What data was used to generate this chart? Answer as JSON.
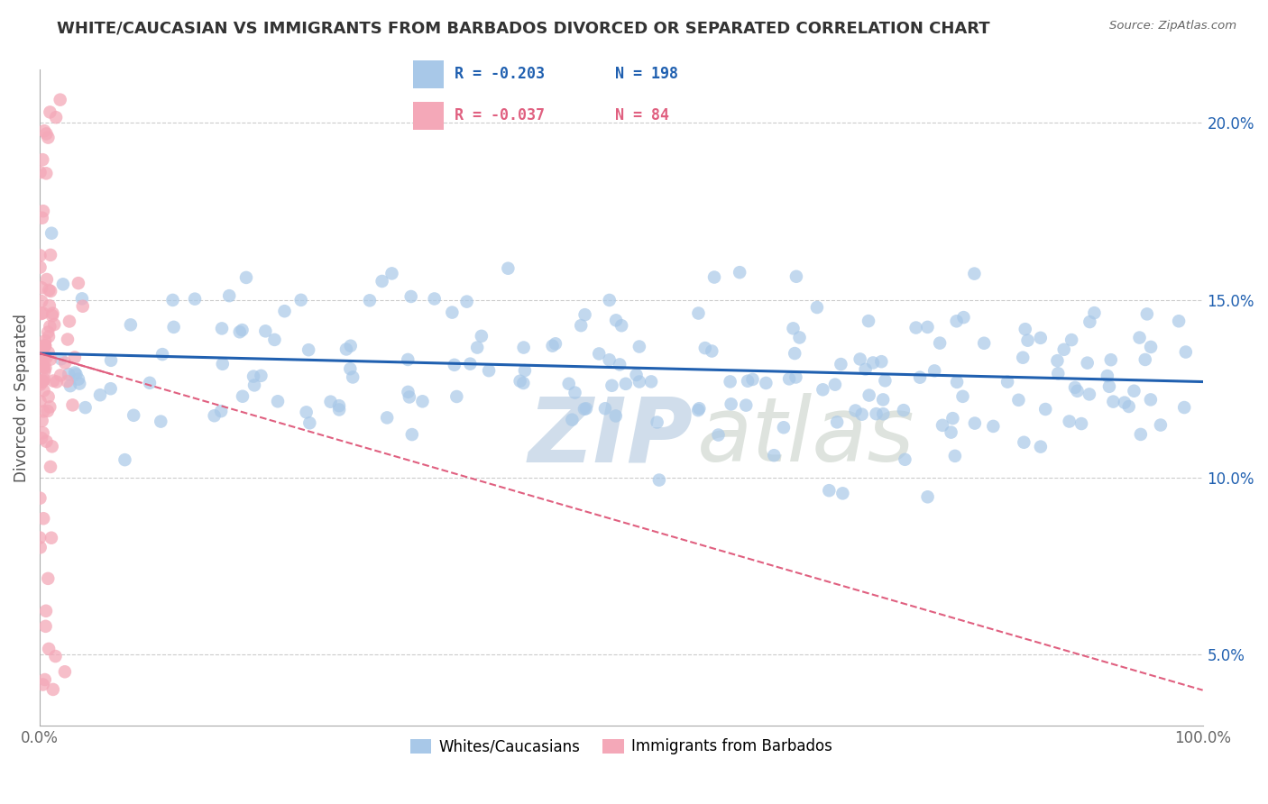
{
  "title": "WHITE/CAUCASIAN VS IMMIGRANTS FROM BARBADOS DIVORCED OR SEPARATED CORRELATION CHART",
  "source": "Source: ZipAtlas.com",
  "ylabel": "Divorced or Separated",
  "xlim": [
    0,
    1.0
  ],
  "ylim": [
    0.03,
    0.215
  ],
  "yticks": [
    0.05,
    0.1,
    0.15,
    0.2
  ],
  "ytick_labels": [
    "5.0%",
    "10.0%",
    "15.0%",
    "20.0%"
  ],
  "xticks": [
    0.0,
    1.0
  ],
  "xtick_labels": [
    "0.0%",
    "100.0%"
  ],
  "blue_R": -0.203,
  "blue_N": 198,
  "pink_R": -0.037,
  "pink_N": 84,
  "blue_color": "#a8c8e8",
  "pink_color": "#f4a8b8",
  "blue_line_color": "#2060b0",
  "pink_line_color": "#e06080",
  "legend_label_blue": "Whites/Caucasians",
  "legend_label_pink": "Immigrants from Barbados",
  "background_color": "#ffffff",
  "grid_color": "#cccccc",
  "title_color": "#333333",
  "blue_intercept": 0.135,
  "blue_slope": -0.008,
  "pink_intercept": 0.135,
  "pink_slope": -0.095
}
